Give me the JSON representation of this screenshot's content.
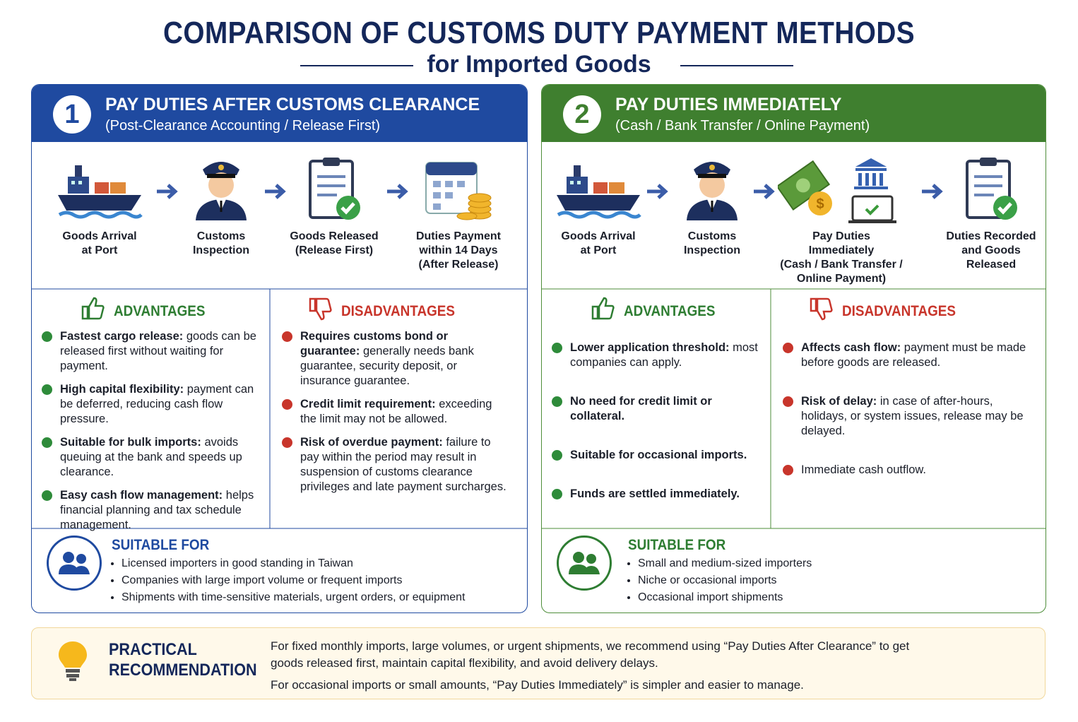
{
  "header": {
    "title": "COMPARISON OF CUSTOMS DUTY PAYMENT METHODS",
    "subtitle": "for Imported Goods"
  },
  "panels": [
    {
      "number": "1",
      "title": "PAY DUTIES AFTER CUSTOMS CLEARANCE",
      "subtitle": "(Post-Clearance Accounting / Release First)",
      "steps": [
        [
          "Goods Arrival",
          "at Port"
        ],
        [
          "Customs",
          "Inspection"
        ],
        [
          "Goods Released",
          "(Release First)"
        ],
        [
          "Duties Payment",
          "within 14 Days",
          "(After Release)"
        ]
      ],
      "advantages": {
        "heading": "ADVANTAGES",
        "items": [
          {
            "bold": "Fastest cargo release:",
            "text": "goods can be released first without waiting for payment."
          },
          {
            "bold": "High capital flexibility:",
            "text": "payment can be deferred, reducing cash flow pressure."
          },
          {
            "bold": "Suitable for bulk imports:",
            "text": "avoids queuing at the bank and speeds up clearance."
          },
          {
            "bold": "Easy cash flow management:",
            "text": "helps financial planning and tax schedule management."
          }
        ]
      },
      "disadvantages": {
        "heading": "DISADVANTAGES",
        "items": [
          {
            "bold": "Requires customs bond or guarantee:",
            "text": "generally needs bank guarantee, security deposit, or insurance guarantee."
          },
          {
            "bold": "Credit limit requirement:",
            "text": "exceeding the limit may not be allowed."
          },
          {
            "bold": "Risk of overdue payment:",
            "text": "failure to pay within the period may result in suspension of customs clearance privileges and late payment surcharges."
          }
        ]
      },
      "suitable": {
        "heading": "SUITABLE FOR",
        "items": [
          "Licensed importers in good standing in Taiwan",
          "Companies with large import volume or frequent imports",
          "Shipments with time-sensitive materials, urgent orders, or equipment"
        ]
      }
    },
    {
      "number": "2",
      "title": "PAY DUTIES IMMEDIATELY",
      "subtitle": "(Cash / Bank Transfer / Online Payment)",
      "steps": [
        [
          "Goods Arrival",
          "at Port"
        ],
        [
          "Customs",
          "Inspection"
        ],
        [
          "Pay Duties",
          "Immediately",
          "(Cash / Bank Transfer /",
          "Online Payment)"
        ],
        [
          "Duties Recorded",
          "and Goods",
          "Released"
        ]
      ],
      "advantages": {
        "heading": "ADVANTAGES",
        "items": [
          {
            "bold": "Lower application threshold:",
            "text": "most companies can apply."
          },
          {
            "bold": "No need for credit limit or collateral."
          },
          {
            "bold": "Suitable for occasional imports."
          },
          {
            "bold": "Funds are settled immediately."
          }
        ]
      },
      "disadvantages": {
        "heading": "DISADVANTAGES",
        "items": [
          {
            "bold": "Affects cash flow:",
            "text": "payment must be made before goods are released."
          },
          {
            "bold": "Risk of delay:",
            "text": "in case of after-hours, holidays, or system issues, release may be delayed."
          },
          {
            "text": "Immediate cash outflow."
          }
        ]
      },
      "suitable": {
        "heading": "SUITABLE FOR",
        "items": [
          "Small and medium-sized importers",
          "Niche or occasional imports",
          "Occasional import shipments"
        ]
      }
    }
  ],
  "recommendation": {
    "heading": [
      "PRACTICAL",
      "RECOMMENDATION"
    ],
    "paragraphs": [
      "For fixed monthly imports, large volumes, or urgent shipments, we recommend using “Pay Duties After Clearance” to get goods released first, maintain capital flexibility, and avoid delivery delays.",
      "For occasional imports or small amounts, “Pay Duties Immediately” is simpler and easier to manage."
    ]
  }
}
